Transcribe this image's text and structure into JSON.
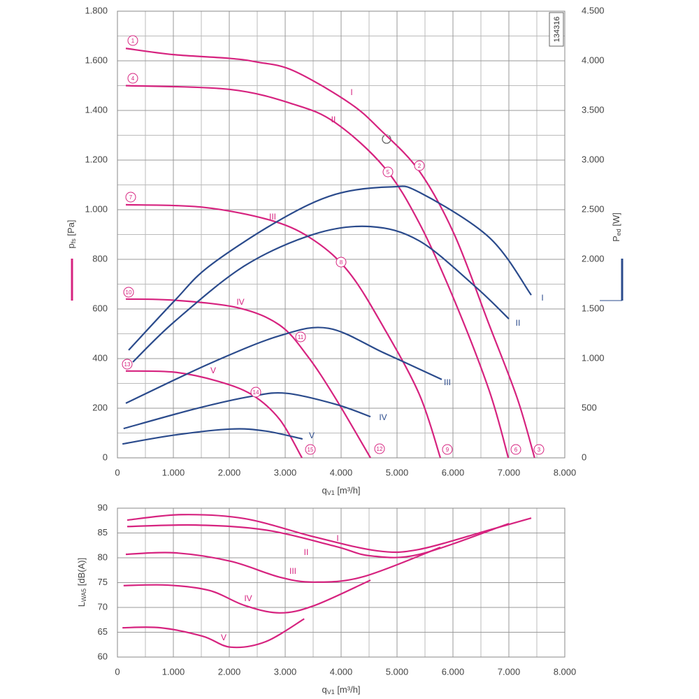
{
  "chart_data": [
    {
      "type": "line",
      "code": "134316",
      "xlabel": {
        "main": "q",
        "sub": "V1",
        "unit": " [m³/h]"
      },
      "ylabel": {
        "main": "p",
        "sub": "fs",
        "unit": " [Pa]"
      },
      "y2label": {
        "main": "P",
        "sub": "ed",
        "unit": " [W]"
      },
      "xlim": [
        0,
        8000
      ],
      "xticks": [
        0,
        {
          "value": 1000,
          "label": "1.000"
        },
        {
          "value": 2000,
          "label": "2.000"
        },
        {
          "value": 3000,
          "label": "3.000"
        },
        {
          "value": 4000,
          "label": "4.000"
        },
        {
          "value": 5000,
          "label": "5.000"
        },
        {
          "value": 6000,
          "label": "6.000"
        },
        {
          "value": 7000,
          "label": "7.000"
        },
        {
          "value": 8000,
          "label": "8.000"
        }
      ],
      "ylim": [
        0,
        1800
      ],
      "yticks": [
        0,
        200,
        400,
        600,
        800,
        {
          "value": 1000,
          "label": "1.000"
        },
        {
          "value": 1200,
          "label": "1.200"
        },
        {
          "value": 1400,
          "label": "1.400"
        },
        {
          "value": 1600,
          "label": "1.600"
        },
        {
          "value": 1800,
          "label": "1.800"
        }
      ],
      "y2lim": [
        0,
        4500
      ],
      "y2ticks": [
        0,
        500,
        {
          "value": 1000,
          "label": "1.000"
        },
        {
          "value": 1500,
          "label": "1.500"
        },
        {
          "value": 2000,
          "label": "2.000"
        },
        {
          "value": 2500,
          "label": "2.500"
        },
        {
          "value": 3000,
          "label": "3.000"
        },
        {
          "value": 3500,
          "label": "3.500"
        },
        {
          "value": 4000,
          "label": "4.000"
        },
        {
          "value": 4500,
          "label": "4.500"
        }
      ],
      "grid": true,
      "minor_grid": [
        "x",
        "y"
      ],
      "series": [
        {
          "name": "I",
          "color": "#d6237f",
          "x": [
            150,
            1000,
            2000,
            2500,
            3150,
            4150,
            4710,
            5400,
            6025,
            6650,
            7150,
            7460
          ],
          "values": [
            1650,
            1625,
            1610,
            1595,
            1560,
            1430,
            1320,
            1155,
            900,
            535,
            240,
            0
          ]
        },
        {
          "name": "II",
          "color": "#d6237f",
          "x": [
            150,
            2000,
            3150,
            3900,
            4775,
            5400,
            6025,
            6650,
            6990
          ],
          "values": [
            1500,
            1485,
            1425,
            1350,
            1170,
            945,
            635,
            270,
            0
          ]
        },
        {
          "name": "III",
          "color": "#d6237f",
          "x": [
            150,
            1525,
            2775,
            3525,
            4150,
            4775,
            5400,
            5775
          ],
          "values": [
            1020,
            1010,
            955,
            875,
            745,
            520,
            255,
            0
          ]
        },
        {
          "name": "IV",
          "color": "#d6237f",
          "x": [
            150,
            1025,
            2150,
            2900,
            3400,
            3900,
            4525
          ],
          "values": [
            640,
            635,
            605,
            535,
            410,
            240,
            0
          ]
        },
        {
          "name": "V",
          "color": "#d6237f",
          "x": [
            150,
            1025,
            1775,
            2400,
            2900,
            3300
          ],
          "values": [
            350,
            345,
            310,
            255,
            155,
            0
          ]
        },
        {
          "name": "I",
          "color": "#2b4b8c",
          "axis": "y2",
          "x": [
            200,
            1025,
            1650,
            2900,
            3900,
            4900,
            5400,
            6650,
            7400
          ],
          "values": [
            1085,
            1585,
            1935,
            2395,
            2655,
            2730,
            2675,
            2220,
            1640
          ]
        },
        {
          "name": "II",
          "color": "#2b4b8c",
          "axis": "y2",
          "x": [
            275,
            1025,
            2275,
            3525,
            4525,
            5400,
            6400,
            7000
          ],
          "values": [
            965,
            1375,
            1935,
            2255,
            2330,
            2185,
            1725,
            1400
          ]
        },
        {
          "name": "III",
          "color": "#2b4b8c",
          "axis": "y2",
          "x": [
            150,
            1650,
            2900,
            3775,
            4775,
            5800
          ],
          "values": [
            550,
            950,
            1230,
            1305,
            1055,
            790
          ]
        },
        {
          "name": "IV",
          "color": "#2b4b8c",
          "axis": "y2",
          "x": [
            110,
            1400,
            2400,
            3025,
            3900,
            4525
          ],
          "values": [
            295,
            495,
            620,
            650,
            540,
            415
          ]
        },
        {
          "name": "V",
          "color": "#2b4b8c",
          "axis": "y2",
          "x": [
            90,
            1025,
            2025,
            2650,
            3310
          ],
          "values": [
            140,
            230,
            290,
            270,
            190
          ]
        }
      ],
      "annotations": [
        {
          "text": "1"
        },
        {
          "text": "4"
        },
        {
          "text": "7"
        },
        {
          "text": "10"
        },
        {
          "text": "13"
        },
        {
          "text": "5"
        },
        {
          "text": "2"
        },
        {
          "text": "8"
        },
        {
          "text": "11"
        },
        {
          "text": "14"
        },
        {
          "text": "15"
        },
        {
          "text": "12"
        },
        {
          "text": "9"
        },
        {
          "text": "6"
        },
        {
          "text": "3"
        }
      ]
    },
    {
      "type": "line",
      "xlabel": {
        "main": "q",
        "sub": "V1",
        "unit": " [m³/h]"
      },
      "ylabel": {
        "main": "L",
        "sub": "WA5",
        "unit": " [dB(A)]"
      },
      "xlim": [
        0,
        8000
      ],
      "xticks": [
        0,
        {
          "value": 1000,
          "label": "1.000"
        },
        {
          "value": 2000,
          "label": "2.000"
        },
        {
          "value": 3000,
          "label": "3.000"
        },
        {
          "value": 4000,
          "label": "4.000"
        },
        {
          "value": 5000,
          "label": "5.000"
        },
        {
          "value": 6000,
          "label": "6.000"
        },
        {
          "value": 7000,
          "label": "7.000"
        },
        {
          "value": 8000,
          "label": "8.000"
        }
      ],
      "ylim": [
        60,
        90
      ],
      "yticks": [
        60,
        65,
        70,
        75,
        80,
        85,
        90
      ],
      "grid": true,
      "minor_grid": [
        "x"
      ],
      "series": [
        {
          "name": "I",
          "color": "#d6237f",
          "x": [
            175,
            1150,
            2275,
            3525,
            4650,
            5400,
            6650,
            7400
          ],
          "values": [
            87.6,
            88.7,
            87.9,
            84.2,
            81.4,
            81.7,
            85.6,
            88.0
          ]
        },
        {
          "name": "II",
          "color": "#d6237f",
          "x": [
            175,
            1400,
            2650,
            3900,
            4525,
            5400,
            7000
          ],
          "values": [
            86.3,
            86.6,
            85.6,
            82.3,
            80.4,
            80.7,
            86.9
          ]
        },
        {
          "name": "III",
          "color": "#d6237f",
          "x": [
            150,
            1025,
            2025,
            2900,
            3525,
            4400,
            5775
          ],
          "values": [
            80.7,
            81.0,
            79.3,
            76.1,
            75.1,
            76.2,
            82.1
          ]
        },
        {
          "name": "IV",
          "color": "#d6237f",
          "x": [
            110,
            900,
            1650,
            2275,
            2900,
            3525,
            4525
          ],
          "values": [
            74.4,
            74.5,
            73.4,
            70.4,
            68.9,
            70.4,
            75.5
          ]
        },
        {
          "name": "V",
          "color": "#d6237f",
          "x": [
            90,
            775,
            1525,
            2025,
            2650,
            3340
          ],
          "values": [
            65.9,
            65.9,
            64.2,
            62.0,
            63.1,
            67.7
          ]
        }
      ]
    }
  ]
}
